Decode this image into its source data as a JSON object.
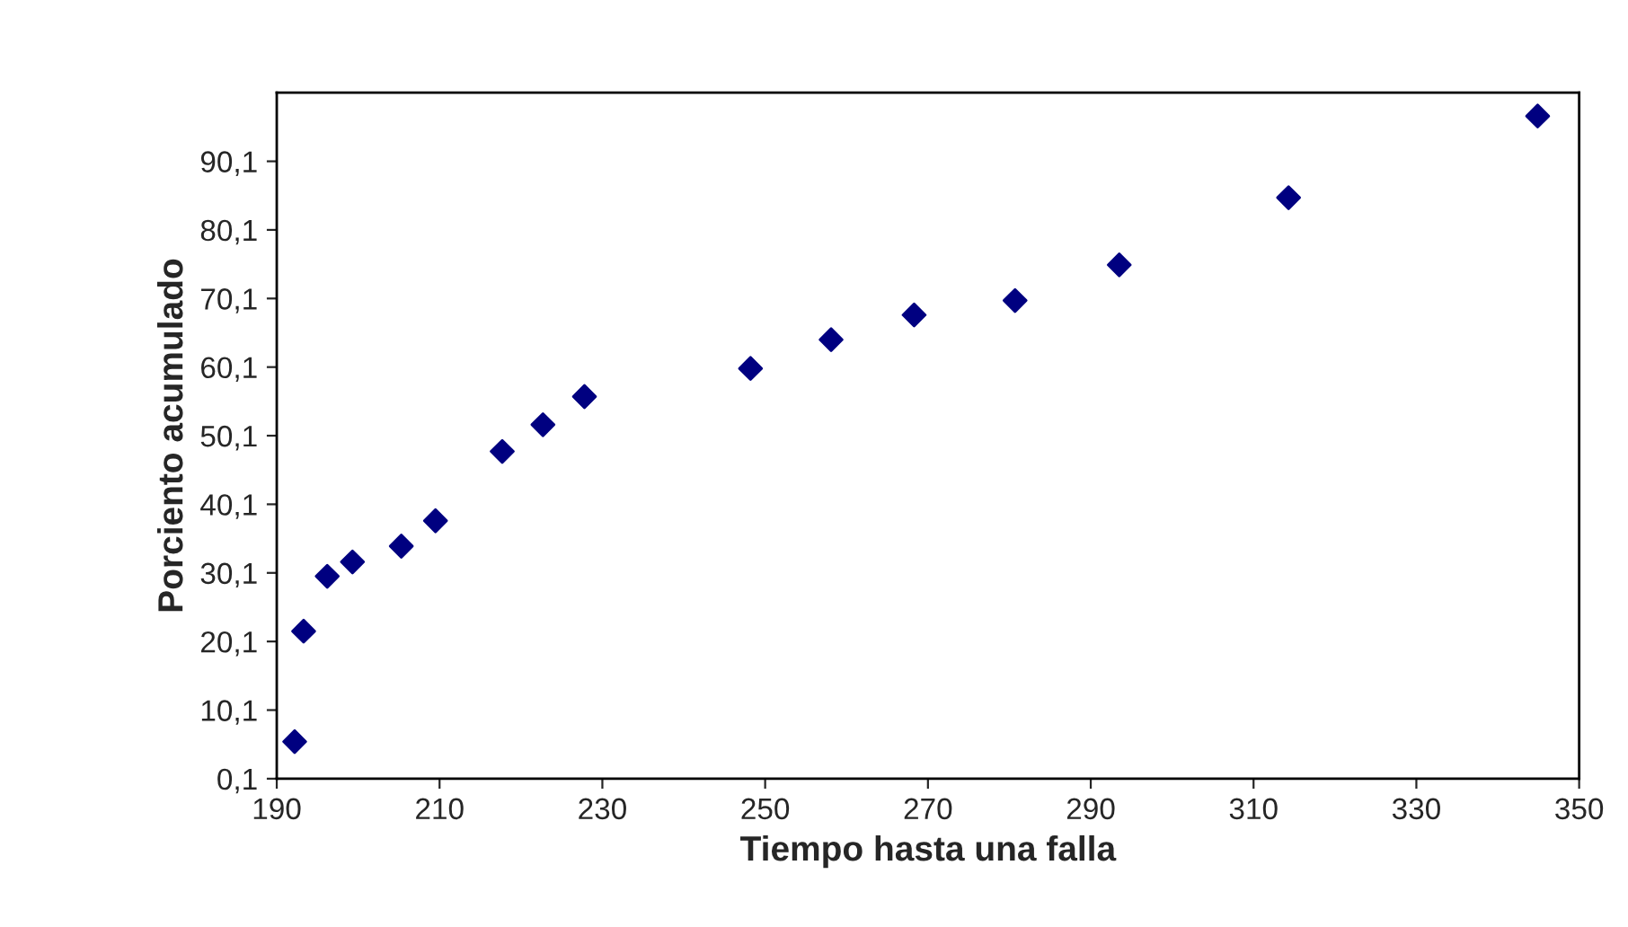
{
  "chart_data": {
    "type": "scatter",
    "xlabel": "Tiempo hasta una falla",
    "ylabel": "Porciento acumulado",
    "x": [
      192.2,
      193.3,
      196.2,
      199.3,
      205.3,
      209.5,
      217.7,
      222.7,
      227.8,
      248.2,
      258.1,
      268.3,
      280.7,
      293.5,
      314.3,
      344.9
    ],
    "series": [
      {
        "color": "#000080",
        "values": [
          5.5,
          21.6,
          29.6,
          31.7,
          34.0,
          37.7,
          47.8,
          51.7,
          55.8,
          59.9,
          64.1,
          67.7,
          69.8,
          75.0,
          84.8,
          96.7
        ]
      }
    ],
    "marker": "diamond",
    "xlim": [
      190,
      350
    ],
    "xticks": [
      190,
      210,
      230,
      250,
      270,
      290,
      310,
      330,
      350
    ],
    "ylim": [
      0.1,
      100.1
    ],
    "yticks": [
      {
        "value": 0.1,
        "label": "0,1"
      },
      {
        "value": 10.1,
        "label": "10,1"
      },
      {
        "value": 20.1,
        "label": "20,1"
      },
      {
        "value": 30.1,
        "label": "30,1"
      },
      {
        "value": 40.1,
        "label": "40,1"
      },
      {
        "value": 50.1,
        "label": "50,1"
      },
      {
        "value": 60.1,
        "label": "60,1"
      },
      {
        "value": 70.1,
        "label": "70,1"
      },
      {
        "value": 80.1,
        "label": "80,1"
      },
      {
        "value": 90.1,
        "label": "90,1"
      }
    ],
    "grid": false,
    "legend": false
  }
}
